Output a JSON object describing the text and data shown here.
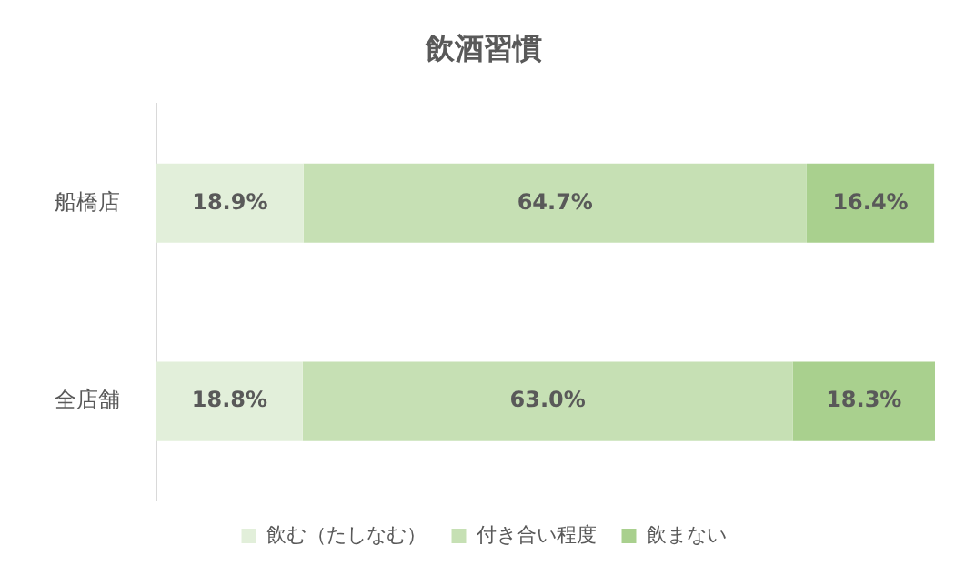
{
  "chart_data": {
    "type": "bar",
    "title": "飲酒習慣",
    "orientation": "horizontal",
    "stacked": true,
    "legend": "bottom",
    "categories": [
      "船橋店",
      "全店舗"
    ],
    "series": [
      {
        "name": "飲む（たしなむ）",
        "color": "#e2efda",
        "values": [
          18.9,
          18.8
        ],
        "value_labels": [
          "18.9%",
          "18.8%"
        ]
      },
      {
        "name": "付き合い程度",
        "color": "#c6e0b4",
        "values": [
          64.7,
          63.0
        ],
        "value_labels": [
          "64.7%",
          "63.0%"
        ]
      },
      {
        "name": "飲まない",
        "color": "#a9d08e",
        "values": [
          16.4,
          18.3
        ],
        "value_labels": [
          "16.4%",
          "18.3%"
        ]
      }
    ]
  }
}
